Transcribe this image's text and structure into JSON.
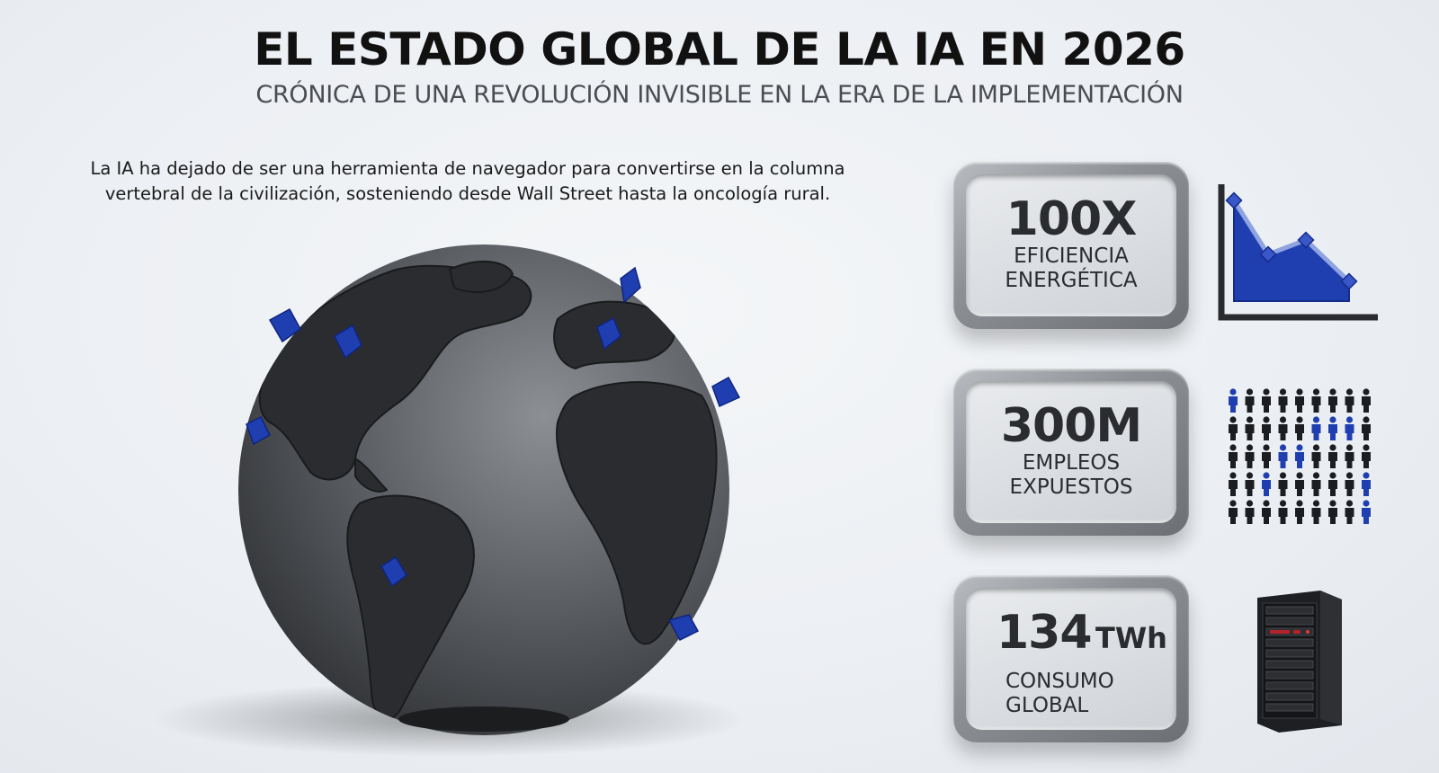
{
  "title": "EL ESTADO GLOBAL DE LA IA EN 2026",
  "subtitle": "CRÓNICA DE UNA REVOLUCIÓN INVISIBLE EN LA ERA DE LA IMPLEMENTACIÓN",
  "intro": {
    "line1": "La IA ha dejado de ser una herramienta de navegador para convertirse en la columna",
    "line2": "vertebral de la civilización, sosteniendo desde Wall Street hasta la oncología rural."
  },
  "stats": [
    {
      "value": "100X",
      "label_line1": "EFICIENCIA",
      "label_line2": "ENERGÉTICA",
      "icon": "declining-line-chart-icon"
    },
    {
      "value": "300M",
      "label_line1": "EMPLEOS",
      "label_line2": "EXPUESTOS",
      "icon": "people-grid-icon"
    },
    {
      "value": "134",
      "unit": "TWh",
      "label_line1": "CONSUMO",
      "label_line2": "GLOBAL",
      "icon": "server-rack-icon"
    }
  ],
  "colors": {
    "accent_blue": "#1f3fb0",
    "globe_dark": "#2b2c2f",
    "globe_ocean": "#5b5e63",
    "card_frame": "#8d9095",
    "card_face": "#dfe1e4"
  },
  "globe": {
    "icon": "globe-icon",
    "marker_icon": "blue-pin-icon"
  },
  "people_grid": {
    "rows": 5,
    "cols": 9,
    "highlighted": [
      [
        0,
        0
      ],
      [
        1,
        5
      ],
      [
        1,
        6
      ],
      [
        1,
        7
      ],
      [
        2,
        3
      ],
      [
        2,
        4
      ],
      [
        3,
        2
      ],
      [
        3,
        8
      ],
      [
        4,
        8
      ]
    ]
  }
}
